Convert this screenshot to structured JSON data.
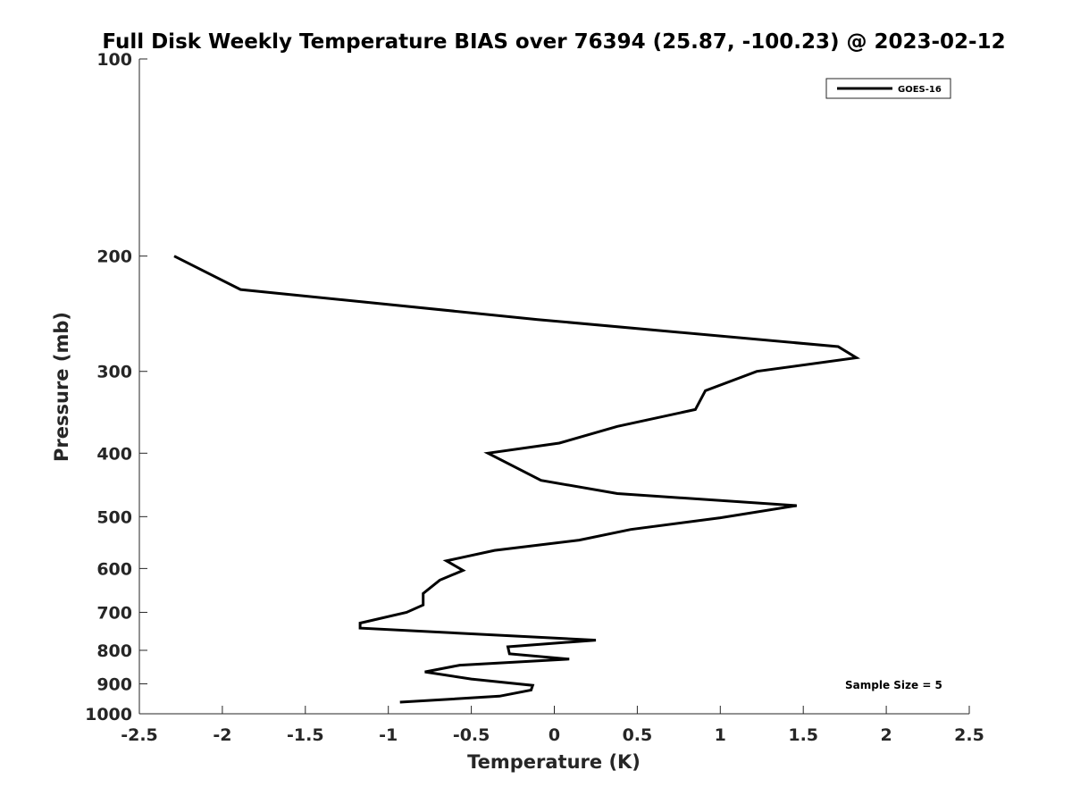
{
  "chart_data": {
    "type": "line",
    "title": "Full Disk Weekly Temperature BIAS over 76394 (25.87, -100.23) @ 2023-02-12",
    "xlabel": "Temperature (K)",
    "ylabel": "Pressure (mb)",
    "xlim": [
      -2.5,
      2.5
    ],
    "ylim": [
      1000,
      100
    ],
    "y_scale": "log",
    "y_reversed": true,
    "grid": false,
    "x_ticks": [
      "-2.5",
      "-2",
      "-1.5",
      "-1",
      "-0.5",
      "0",
      "0.5",
      "1",
      "1.5",
      "2",
      "2.5"
    ],
    "x_tick_values": [
      -2.5,
      -2,
      -1.5,
      -1,
      -0.5,
      0,
      0.5,
      1,
      1.5,
      2,
      2.5
    ],
    "y_ticks": [
      "100",
      "200",
      "300",
      "400",
      "500",
      "600",
      "700",
      "800",
      "900",
      "1000"
    ],
    "y_tick_values": [
      100,
      200,
      300,
      400,
      500,
      600,
      700,
      800,
      900,
      1000
    ],
    "legend_position": "top-right",
    "annotation": "Sample Size = 5",
    "series": [
      {
        "name": "GOES-16",
        "color": "#000000",
        "points": [
          [
            -2.29,
            200
          ],
          [
            -1.89,
            225
          ],
          [
            -0.1,
            250
          ],
          [
            1.71,
            275
          ],
          [
            1.82,
            286
          ],
          [
            1.22,
            300
          ],
          [
            0.91,
            321
          ],
          [
            0.85,
            343
          ],
          [
            0.38,
            364
          ],
          [
            0.03,
            386
          ],
          [
            -0.4,
            400
          ],
          [
            -0.08,
            440
          ],
          [
            0.38,
            461
          ],
          [
            1.46,
            481
          ],
          [
            1.0,
            502
          ],
          [
            0.46,
            523
          ],
          [
            0.15,
            543
          ],
          [
            -0.36,
            563
          ],
          [
            -0.65,
            584
          ],
          [
            -0.55,
            604
          ],
          [
            -0.69,
            625
          ],
          [
            -0.79,
            655
          ],
          [
            -0.79,
            682
          ],
          [
            -0.89,
            700
          ],
          [
            -1.17,
            727
          ],
          [
            -1.17,
            740
          ],
          [
            0.25,
            772
          ],
          [
            -0.28,
            790
          ],
          [
            -0.27,
            810
          ],
          [
            0.09,
            825
          ],
          [
            -0.57,
            843
          ],
          [
            -0.78,
            863
          ],
          [
            -0.5,
            885
          ],
          [
            -0.13,
            905
          ],
          [
            -0.14,
            920
          ],
          [
            -0.33,
            940
          ],
          [
            -0.93,
            960
          ]
        ]
      }
    ]
  }
}
